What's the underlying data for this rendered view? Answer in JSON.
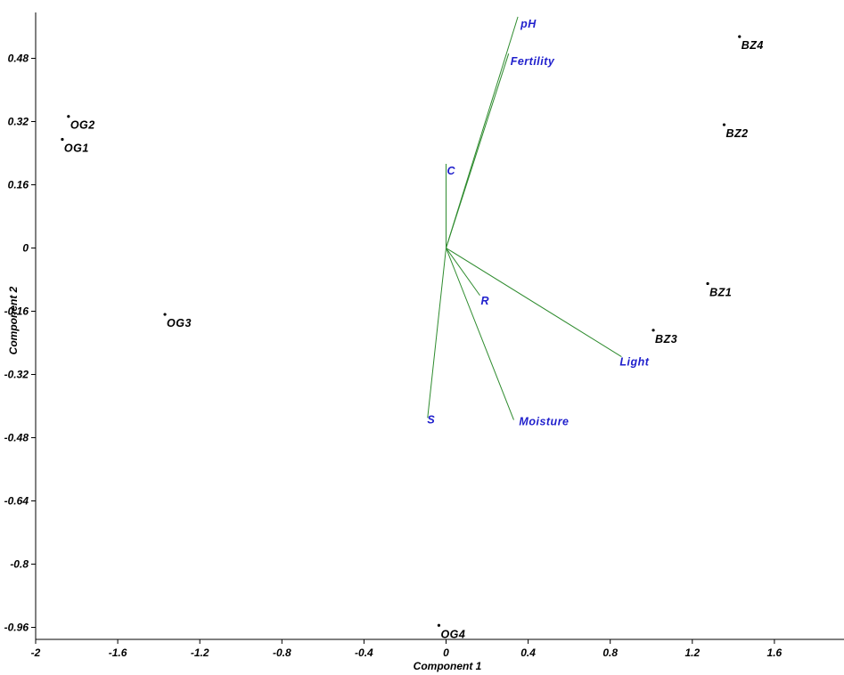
{
  "chart_data": {
    "type": "scatter",
    "subtype": "pca-biplot",
    "xlabel": "Component 1",
    "ylabel": "Component 2",
    "xlim": [
      -2.0,
      1.95
    ],
    "ylim": [
      -1.0,
      0.575
    ],
    "x_ticks": [
      "-2",
      "-1.6",
      "-1.2",
      "-0.8",
      "-0.4",
      "0",
      "0.4",
      "0.8",
      "1.2",
      "1.6"
    ],
    "y_ticks": [
      "0.48",
      "0.32",
      "0.16",
      "0",
      "-0.16",
      "-0.32",
      "-0.48",
      "-0.64",
      "-0.8",
      "-0.96"
    ],
    "grid": false,
    "colors": {
      "points": "#000000",
      "vectors": "#2e8b2e",
      "vector_labels": "#1f1fcc",
      "axes": "#000000"
    },
    "points": [
      {
        "label": "OG2",
        "x": -1.84,
        "y": 0.333
      },
      {
        "label": "OG1",
        "x": -1.87,
        "y": 0.275
      },
      {
        "label": "OG3",
        "x": -1.37,
        "y": -0.168
      },
      {
        "label": "OG4",
        "x": -0.035,
        "y": -0.955
      },
      {
        "label": "BZ4",
        "x": 1.43,
        "y": 0.535
      },
      {
        "label": "BZ2",
        "x": 1.355,
        "y": 0.312
      },
      {
        "label": "BZ1",
        "x": 1.275,
        "y": -0.09
      },
      {
        "label": "BZ3",
        "x": 1.01,
        "y": -0.208
      }
    ],
    "vectors": [
      {
        "label": "pH",
        "x": 0.35,
        "y": 0.585
      },
      {
        "label": "Fertility",
        "x": 0.305,
        "y": 0.492
      },
      {
        "label": "C",
        "x": 0.0,
        "y": 0.213
      },
      {
        "label": "R",
        "x": 0.165,
        "y": -0.12
      },
      {
        "label": "Light",
        "x": 0.855,
        "y": -0.275
      },
      {
        "label": "Moisture",
        "x": 0.33,
        "y": -0.435
      },
      {
        "label": "S",
        "x": -0.09,
        "y": -0.43
      }
    ]
  }
}
